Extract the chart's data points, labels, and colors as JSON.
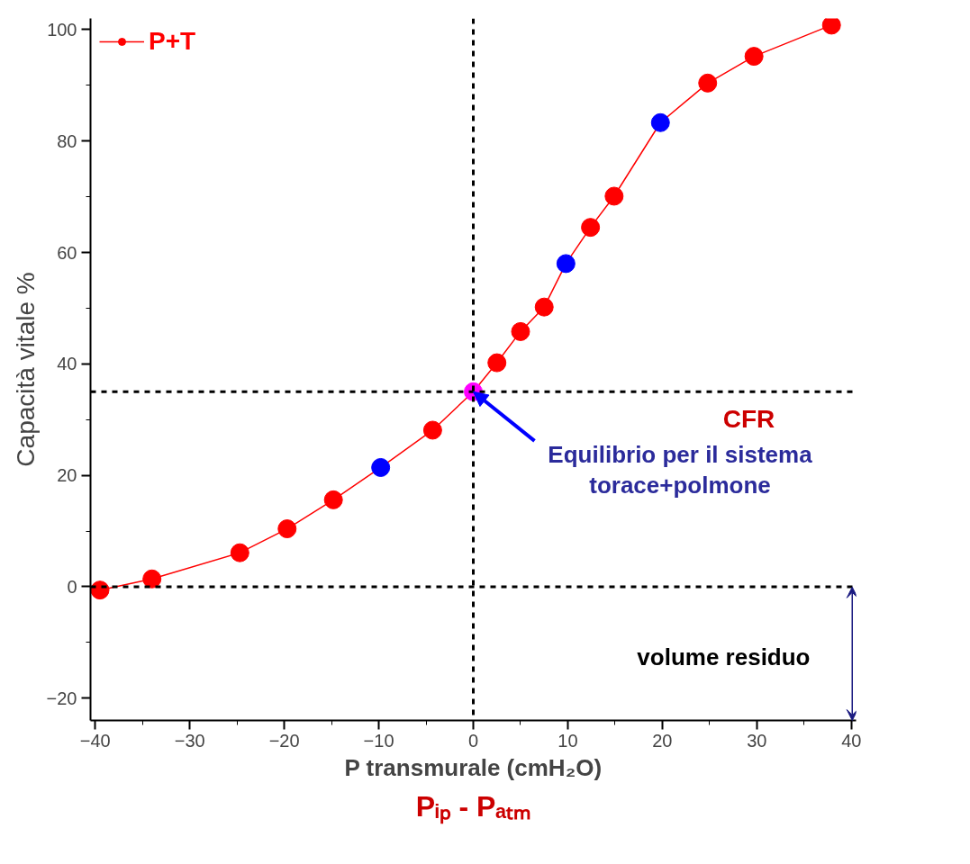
{
  "chart_data": {
    "type": "line",
    "xlabel": "P transmurale (cmH₂O)",
    "ylabel": "Capacità vitale %",
    "x": [
      -39.5,
      -34,
      -24.7,
      -19.7,
      -14.8,
      -9.8,
      -4.3,
      0,
      2.5,
      5,
      7.5,
      9.8,
      12.4,
      14.9,
      19.8,
      24.8,
      29.7,
      37.9
    ],
    "series": [
      {
        "name": "P+T",
        "color": "#ff0000",
        "colors": [
          "#ff0000",
          "#ff0000",
          "#ff0000",
          "#ff0000",
          "#ff0000",
          "#0000ff",
          "#ff0000",
          "#ff00ff",
          "#ff0000",
          "#ff0000",
          "#ff0000",
          "#0000ff",
          "#ff0000",
          "#ff0000",
          "#0000ff",
          "#ff0000",
          "#ff0000",
          "#ff0000"
        ],
        "values": [
          -0.6,
          1.4,
          6.1,
          10.4,
          15.6,
          21.4,
          28.1,
          35,
          40.2,
          45.8,
          50.2,
          58,
          64.5,
          70.1,
          83.3,
          90.4,
          95.2,
          100.8
        ]
      }
    ],
    "xlim": [
      -40.5,
      40.5
    ],
    "ylim": [
      -24,
      102
    ],
    "xticks": [
      -40,
      -30,
      -20,
      -10,
      0,
      10,
      20,
      30,
      40
    ],
    "yticks": [
      -20,
      0,
      20,
      40,
      60,
      80,
      100
    ],
    "ref_lines": [
      {
        "axis": "y",
        "value": 35,
        "color": "#000000",
        "line_style": "dashed"
      },
      {
        "axis": "y",
        "value": 0,
        "color": "#000000",
        "line_style": "dashed"
      },
      {
        "axis": "x",
        "value": 0,
        "color": "#000000",
        "line_style": "dashed"
      }
    ],
    "annotations": [
      "CFR",
      {
        "text": "Equilibrio per il sistema\ntorace+polmone",
        "x": 0,
        "y": 35
      },
      "volume residuo",
      "Pᵢₚ - Pₐₜₘ"
    ],
    "grid": false,
    "legend": "top left",
    "marker": "circle",
    "line_style": "solid"
  }
}
